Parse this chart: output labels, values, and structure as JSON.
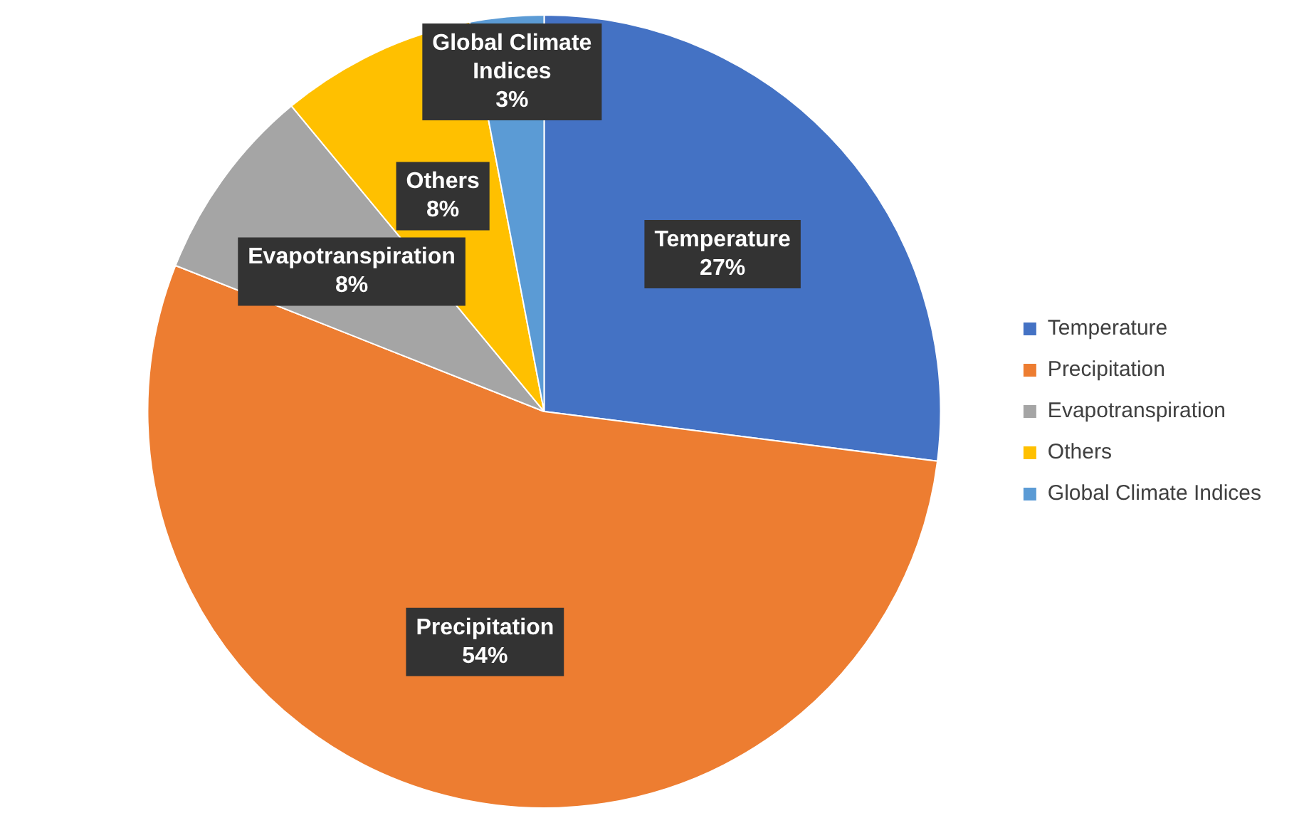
{
  "chart_data": {
    "type": "pie",
    "categories": [
      "Temperature",
      "Precipitation",
      "Evapotranspiration",
      "Others",
      "Global Climate Indices"
    ],
    "values": [
      27,
      54,
      8,
      8,
      3
    ],
    "colors": [
      "#4472c4",
      "#ed7d31",
      "#a5a5a5",
      "#ffc000",
      "#5b9bd5"
    ],
    "value_labels": [
      "27%",
      "54%",
      "8%",
      "8%",
      "3%"
    ],
    "legend": "right"
  }
}
